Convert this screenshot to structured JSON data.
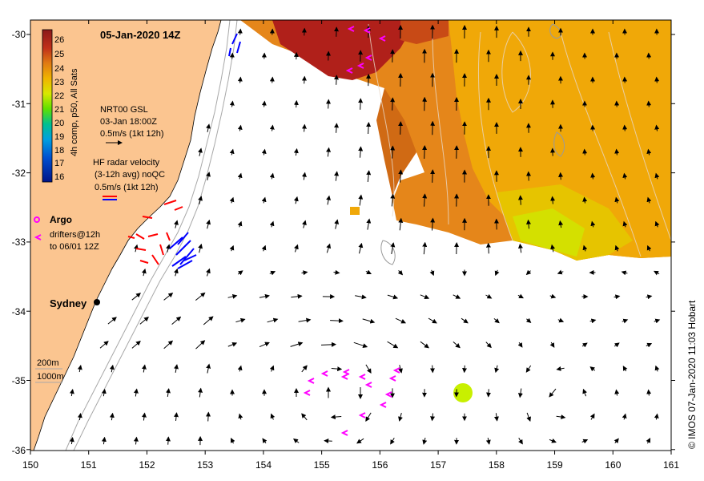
{
  "title": "05-Jan-2020 14Z",
  "credit": "© IMOS 07-Jan-2020 11:03 Hobart",
  "x_ticks": [
    "150",
    "151",
    "152",
    "153",
    "154",
    "155",
    "156",
    "157",
    "158",
    "159",
    "160",
    "161"
  ],
  "y_ticks": [
    "-30",
    "-31",
    "-32",
    "-33",
    "-34",
    "-35",
    "-36"
  ],
  "colorbar": {
    "label": "4h comp, p50, All Sats",
    "ticks": [
      "26",
      "25",
      "24",
      "23",
      "22",
      "21",
      "20",
      "19",
      "18",
      "17",
      "16"
    ],
    "colors": [
      "#8b1a1a",
      "#b8261a",
      "#d9531c",
      "#e8861a",
      "#f0b400",
      "#d8e800",
      "#7ce400",
      "#00c08c",
      "#0090e0",
      "#0040c0",
      "#001890"
    ]
  },
  "legend": {
    "gsl_title": "NRT00 GSL",
    "gsl_time": "03-Jan 18:00Z",
    "gsl_scale": "0.5m/s (1kt 12h)",
    "hf_title": "HF radar velocity",
    "hf_sub": "(3-12h avg) noQC",
    "hf_scale": "0.5m/s (1kt 12h)",
    "argo": "Argo",
    "drifters": "drifters@12h",
    "drifters_to": "to 06/01 12Z",
    "depth_200": "200m",
    "depth_1000": "1000m"
  },
  "city": "Sydney",
  "colors": {
    "land": "#fbc590",
    "sst_hot": "#b0201a",
    "sst_warm": "#e07a12",
    "sst_mid": "#f0a808",
    "sst_cool": "#d8e800",
    "hf_red": "#ff0000",
    "hf_blue": "#0000ff",
    "argo": "#ff00ff"
  }
}
